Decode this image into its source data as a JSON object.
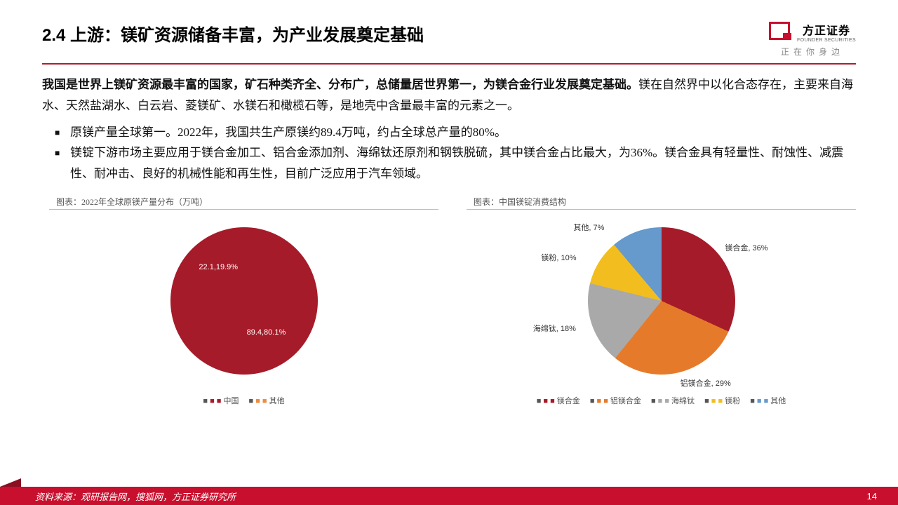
{
  "header": {
    "title": "2.4 上游：镁矿资源储备丰富，为产业发展奠定基础",
    "logo_cn": "方正证券",
    "logo_en": "FOUNDER SECURITIES",
    "tagline": "正在你身边"
  },
  "body": {
    "para_bold": "我国是世界上镁矿资源最丰富的国家，矿石种类齐全、分布广，总储量居世界第一，为镁合金行业发展奠定基础。",
    "para_rest": "镁在自然界中以化合态存在，主要来自海水、天然盐湖水、白云岩、菱镁矿、水镁石和橄榄石等，是地壳中含量最丰富的元素之一。",
    "bullet1": "原镁产量全球第一。2022年，我国共生产原镁约89.4万吨，约占全球总产量的80%。",
    "bullet2": "镁锭下游市场主要应用于镁合金加工、铝合金添加剂、海绵钛还原剂和钢铁脱硫，其中镁合金占比最大，为36%。镁合金具有轻量性、耐蚀性、减震性、耐冲击、良好的机械性能和再生性，目前广泛应用于汽车领域。"
  },
  "chart1": {
    "type": "pie",
    "title": "图表：2022年全球原镁产量分布（万吨）",
    "slices": [
      {
        "name": "中国",
        "value": 89.4,
        "pct": 80.1,
        "color": "#a61b29",
        "label": "89.4,80.1%"
      },
      {
        "name": "其他",
        "value": 22.1,
        "pct": 19.9,
        "color": "#ec8c3e",
        "label": "22.1,19.9%"
      }
    ],
    "legend": [
      "中国",
      "其他"
    ],
    "legend_colors": [
      "#a61b29",
      "#ec8c3e"
    ]
  },
  "chart2": {
    "type": "pie",
    "title": "图表：中国镁锭消费结构",
    "slices": [
      {
        "name": "镁合金",
        "pct": 36,
        "color": "#a61b29",
        "label": "镁合金, 36%"
      },
      {
        "name": "铝镁合金",
        "pct": 29,
        "color": "#e57b2a",
        "label": "铝镁合金, 29%"
      },
      {
        "name": "海绵钛",
        "pct": 18,
        "color": "#a9a9a9",
        "label": "海绵钛, 18%"
      },
      {
        "name": "镁粉",
        "pct": 10,
        "color": "#f2bd1e",
        "label": "镁粉, 10%"
      },
      {
        "name": "其他",
        "pct": 7,
        "color": "#6699cc",
        "label": "其他, 7%"
      }
    ],
    "legend": [
      "镁合金",
      "铝镁合金",
      "海绵钛",
      "镁粉",
      "其他"
    ],
    "legend_colors": [
      "#a61b29",
      "#e57b2a",
      "#a9a9a9",
      "#f2bd1e",
      "#6699cc"
    ]
  },
  "footer": {
    "source": "资料来源：观研报告网，搜狐网，方正证券研究所",
    "page": "14"
  },
  "colors": {
    "brand_red": "#c8102e",
    "rule_red": "#b01c2e"
  }
}
